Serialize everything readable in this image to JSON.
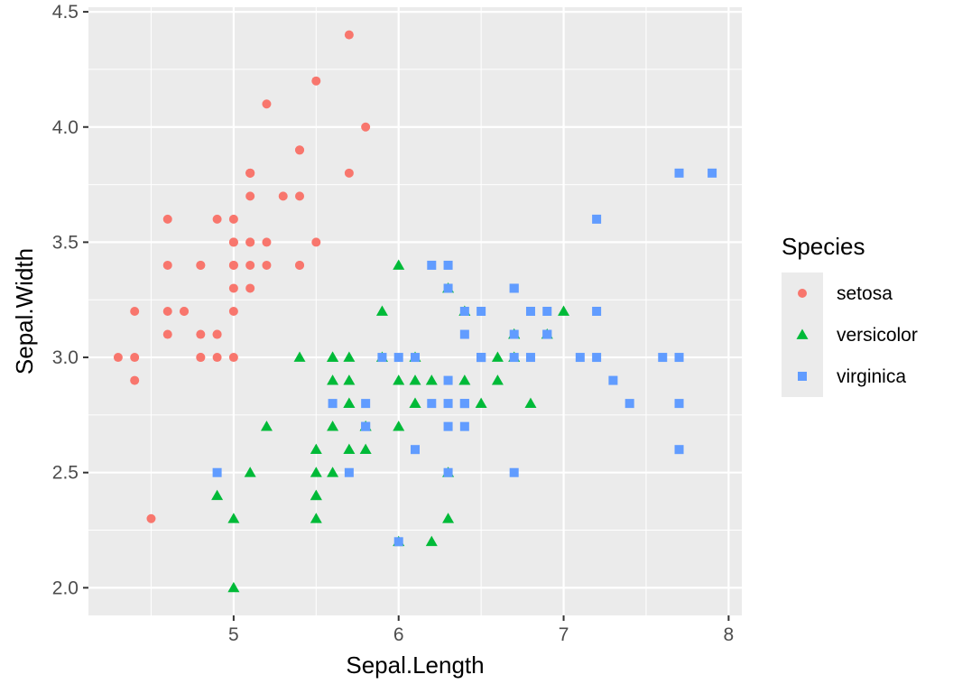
{
  "chart_data": {
    "type": "scatter",
    "xlabel": "Sepal.Length",
    "ylabel": "Sepal.Width",
    "xlim": [
      4.12,
      8.08
    ],
    "ylim": [
      1.88,
      4.52
    ],
    "x_ticks": [
      5,
      6,
      7,
      8
    ],
    "x_tick_labels": [
      "5",
      "6",
      "7",
      "8"
    ],
    "y_ticks": [
      2.0,
      2.5,
      3.0,
      3.5,
      4.0,
      4.5
    ],
    "y_tick_labels": [
      "2.0",
      "2.5",
      "3.0",
      "3.5",
      "4.0",
      "4.5"
    ],
    "grid": true,
    "legend": {
      "title": "Species",
      "placement": "right"
    },
    "series": [
      {
        "name": "setosa",
        "color": "#F8766D",
        "marker": "circle",
        "points": [
          [
            5.1,
            3.5
          ],
          [
            4.9,
            3.0
          ],
          [
            4.7,
            3.2
          ],
          [
            4.6,
            3.1
          ],
          [
            5.0,
            3.6
          ],
          [
            5.4,
            3.9
          ],
          [
            4.6,
            3.4
          ],
          [
            5.0,
            3.4
          ],
          [
            4.4,
            2.9
          ],
          [
            4.9,
            3.1
          ],
          [
            5.4,
            3.7
          ],
          [
            4.8,
            3.4
          ],
          [
            4.8,
            3.0
          ],
          [
            4.3,
            3.0
          ],
          [
            5.8,
            4.0
          ],
          [
            5.7,
            4.4
          ],
          [
            5.4,
            3.9
          ],
          [
            5.1,
            3.5
          ],
          [
            5.7,
            3.8
          ],
          [
            5.1,
            3.8
          ],
          [
            5.4,
            3.4
          ],
          [
            5.1,
            3.7
          ],
          [
            4.6,
            3.6
          ],
          [
            5.1,
            3.3
          ],
          [
            4.8,
            3.4
          ],
          [
            5.0,
            3.0
          ],
          [
            5.0,
            3.4
          ],
          [
            5.2,
            3.5
          ],
          [
            5.2,
            3.4
          ],
          [
            4.7,
            3.2
          ],
          [
            4.8,
            3.1
          ],
          [
            5.4,
            3.4
          ],
          [
            5.2,
            4.1
          ],
          [
            5.5,
            4.2
          ],
          [
            4.9,
            3.1
          ],
          [
            5.0,
            3.2
          ],
          [
            5.5,
            3.5
          ],
          [
            4.9,
            3.6
          ],
          [
            4.4,
            3.0
          ],
          [
            5.1,
            3.4
          ],
          [
            5.0,
            3.5
          ],
          [
            4.5,
            2.3
          ],
          [
            4.4,
            3.2
          ],
          [
            5.0,
            3.5
          ],
          [
            5.1,
            3.8
          ],
          [
            4.8,
            3.0
          ],
          [
            5.1,
            3.8
          ],
          [
            4.6,
            3.2
          ],
          [
            5.3,
            3.7
          ],
          [
            5.0,
            3.3
          ]
        ]
      },
      {
        "name": "versicolor",
        "color": "#00BA38",
        "marker": "triangle",
        "points": [
          [
            7.0,
            3.2
          ],
          [
            6.4,
            3.2
          ],
          [
            6.9,
            3.1
          ],
          [
            5.5,
            2.3
          ],
          [
            6.5,
            2.8
          ],
          [
            5.7,
            2.8
          ],
          [
            6.3,
            3.3
          ],
          [
            4.9,
            2.4
          ],
          [
            6.6,
            2.9
          ],
          [
            5.2,
            2.7
          ],
          [
            5.0,
            2.0
          ],
          [
            5.9,
            3.0
          ],
          [
            6.0,
            2.2
          ],
          [
            6.1,
            2.9
          ],
          [
            5.6,
            2.9
          ],
          [
            6.7,
            3.1
          ],
          [
            5.6,
            3.0
          ],
          [
            5.8,
            2.7
          ],
          [
            6.2,
            2.2
          ],
          [
            5.6,
            2.5
          ],
          [
            5.9,
            3.2
          ],
          [
            6.1,
            2.8
          ],
          [
            6.3,
            2.5
          ],
          [
            6.1,
            2.8
          ],
          [
            6.4,
            2.9
          ],
          [
            6.6,
            3.0
          ],
          [
            6.8,
            2.8
          ],
          [
            6.7,
            3.0
          ],
          [
            6.0,
            2.9
          ],
          [
            5.7,
            2.6
          ],
          [
            5.5,
            2.4
          ],
          [
            5.5,
            2.4
          ],
          [
            5.8,
            2.7
          ],
          [
            6.0,
            2.7
          ],
          [
            5.4,
            3.0
          ],
          [
            6.0,
            3.4
          ],
          [
            6.7,
            3.1
          ],
          [
            6.3,
            2.3
          ],
          [
            5.6,
            3.0
          ],
          [
            5.5,
            2.5
          ],
          [
            5.5,
            2.6
          ],
          [
            6.1,
            3.0
          ],
          [
            5.8,
            2.6
          ],
          [
            5.0,
            2.3
          ],
          [
            5.6,
            2.7
          ],
          [
            5.7,
            3.0
          ],
          [
            5.7,
            2.9
          ],
          [
            6.2,
            2.9
          ],
          [
            5.1,
            2.5
          ],
          [
            5.7,
            2.8
          ]
        ]
      },
      {
        "name": "virginica",
        "color": "#619CFF",
        "marker": "square",
        "points": [
          [
            6.3,
            3.3
          ],
          [
            5.8,
            2.7
          ],
          [
            7.1,
            3.0
          ],
          [
            6.3,
            2.9
          ],
          [
            6.5,
            3.0
          ],
          [
            7.6,
            3.0
          ],
          [
            4.9,
            2.5
          ],
          [
            7.3,
            2.9
          ],
          [
            6.7,
            2.5
          ],
          [
            7.2,
            3.6
          ],
          [
            6.5,
            3.2
          ],
          [
            6.4,
            2.7
          ],
          [
            6.8,
            3.0
          ],
          [
            5.7,
            2.5
          ],
          [
            5.8,
            2.8
          ],
          [
            6.4,
            3.2
          ],
          [
            6.5,
            3.0
          ],
          [
            7.7,
            3.8
          ],
          [
            7.7,
            2.6
          ],
          [
            6.0,
            2.2
          ],
          [
            6.9,
            3.2
          ],
          [
            5.6,
            2.8
          ],
          [
            7.7,
            2.8
          ],
          [
            6.3,
            2.7
          ],
          [
            6.7,
            3.3
          ],
          [
            7.2,
            3.2
          ],
          [
            6.2,
            2.8
          ],
          [
            6.1,
            3.0
          ],
          [
            6.4,
            2.8
          ],
          [
            7.2,
            3.0
          ],
          [
            7.4,
            2.8
          ],
          [
            7.9,
            3.8
          ],
          [
            6.4,
            2.8
          ],
          [
            6.3,
            2.8
          ],
          [
            6.1,
            2.6
          ],
          [
            7.7,
            3.0
          ],
          [
            6.3,
            3.4
          ],
          [
            6.4,
            3.1
          ],
          [
            6.0,
            3.0
          ],
          [
            6.9,
            3.1
          ],
          [
            6.7,
            3.1
          ],
          [
            6.9,
            3.1
          ],
          [
            5.8,
            2.7
          ],
          [
            6.8,
            3.2
          ],
          [
            6.7,
            3.3
          ],
          [
            6.7,
            3.0
          ],
          [
            6.3,
            2.5
          ],
          [
            6.5,
            3.0
          ],
          [
            6.2,
            3.4
          ],
          [
            5.9,
            3.0
          ]
        ]
      }
    ]
  }
}
